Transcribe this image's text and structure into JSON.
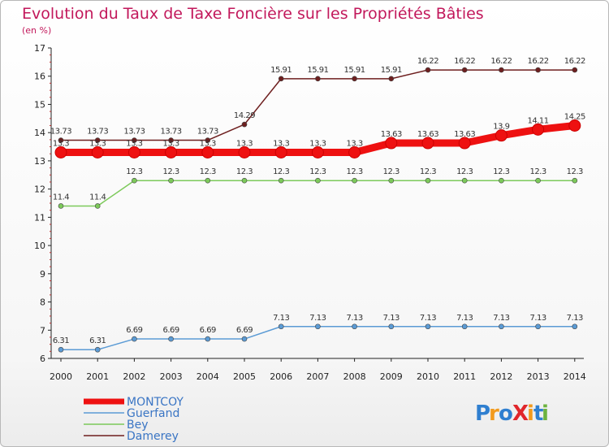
{
  "chart_data": {
    "type": "line",
    "title": "Evolution du Taux de Taxe Foncière sur les Propriétés Bâties",
    "subtitle": "(en %)",
    "xlabel": "",
    "ylabel": "",
    "ylim": [
      6,
      17
    ],
    "grid": false,
    "legend_position": "bottom-left",
    "categories": [
      "2000",
      "2001",
      "2002",
      "2003",
      "2004",
      "2005",
      "2006",
      "2007",
      "2008",
      "2009",
      "2010",
      "2011",
      "2012",
      "2013",
      "2014"
    ],
    "y_ticks": [
      "6",
      "7",
      "8",
      "9",
      "10",
      "11",
      "12",
      "13",
      "14",
      "15",
      "16",
      "17"
    ],
    "series": [
      {
        "name": "Damerey",
        "color": "#6e1f1f",
        "width": 1.5,
        "marker": 3,
        "values": [
          13.73,
          13.73,
          13.73,
          13.73,
          13.73,
          14.29,
          15.91,
          15.91,
          15.91,
          15.91,
          16.22,
          16.22,
          16.22,
          16.22,
          16.22
        ],
        "labels": [
          "13.73",
          "13.73",
          "13.73",
          "13.73",
          "13.73",
          "14.29",
          "15.91",
          "15.91",
          "15.91",
          "15.91",
          "16.22",
          "16.22",
          "16.22",
          "16.22",
          "16.22"
        ]
      },
      {
        "name": "Bey",
        "color": "#7cc95a",
        "width": 1.5,
        "marker": 3,
        "values": [
          11.4,
          11.4,
          12.3,
          12.3,
          12.3,
          12.3,
          12.3,
          12.3,
          12.3,
          12.3,
          12.3,
          12.3,
          12.3,
          12.3,
          12.3
        ],
        "labels": [
          "11.4",
          "11.4",
          "12.3",
          "12.3",
          "12.3",
          "12.3",
          "12.3",
          "12.3",
          "12.3",
          "12.3",
          "12.3",
          "12.3",
          "12.3",
          "12.3",
          "12.3"
        ]
      },
      {
        "name": "Guerfand",
        "color": "#5b9bd5",
        "width": 1.5,
        "marker": 3,
        "values": [
          6.31,
          6.31,
          6.69,
          6.69,
          6.69,
          6.69,
          7.13,
          7.13,
          7.13,
          7.13,
          7.13,
          7.13,
          7.13,
          7.13,
          7.13
        ],
        "labels": [
          "6.31",
          "6.31",
          "6.69",
          "6.69",
          "6.69",
          "6.69",
          "7.13",
          "7.13",
          "7.13",
          "7.13",
          "7.13",
          "7.13",
          "7.13",
          "7.13",
          "7.13"
        ]
      },
      {
        "name": "MONTCOY",
        "color": "#ee1111",
        "width": 9,
        "marker": 7,
        "values": [
          13.3,
          13.3,
          13.3,
          13.3,
          13.3,
          13.3,
          13.3,
          13.3,
          13.3,
          13.63,
          13.63,
          13.63,
          13.9,
          14.11,
          14.25
        ],
        "labels": [
          "13.3",
          "13.3",
          "13.3",
          "13.3",
          "13.3",
          "13.3",
          "13.3",
          "13.3",
          "13.3",
          "13.63",
          "13.63",
          "13.63",
          "13.9",
          "14.11",
          "14.25"
        ]
      }
    ]
  },
  "legend": [
    {
      "name": "MONTCOY",
      "color": "#ee1111",
      "thick": true
    },
    {
      "name": "Guerfand",
      "color": "#5b9bd5",
      "thick": false
    },
    {
      "name": "Bey",
      "color": "#7cc95a",
      "thick": false
    },
    {
      "name": "Damerey",
      "color": "#6e1f1f",
      "thick": false
    }
  ],
  "logo": {
    "text": "ProXiti",
    "colors": [
      "#2f7fd0",
      "#f29a1d",
      "#2f7fd0",
      "#e0262b",
      "#f29a1d",
      "#2f7fd0",
      "#6db33f"
    ]
  }
}
